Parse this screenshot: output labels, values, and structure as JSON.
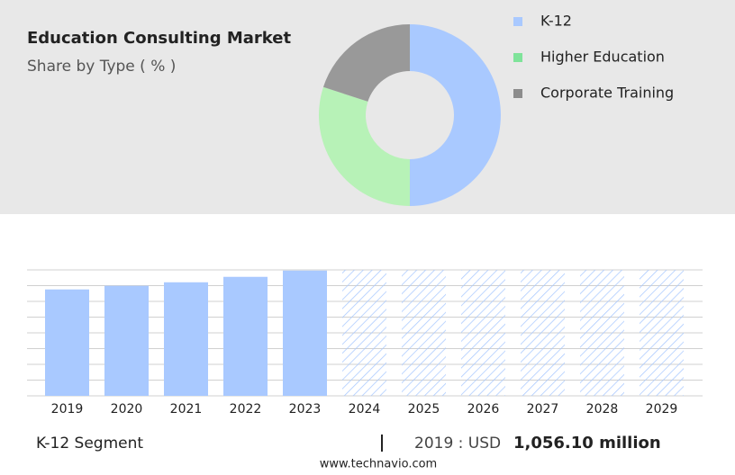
{
  "chart_data": [
    {
      "type": "pie",
      "title": "Education Consulting Market",
      "subtitle": "Share by Type ( % )",
      "categories": [
        "K-12",
        "Higher Education",
        "Corporate Training"
      ],
      "values": [
        50,
        30,
        20
      ],
      "colors": [
        "#a9c9ff",
        "#b7f2b7",
        "#999999"
      ],
      "legend_colors": [
        "#a9c9ff",
        "#7fe39a",
        "#8c8c8c"
      ]
    },
    {
      "type": "bar",
      "categories": [
        "2019",
        "2020",
        "2021",
        "2022",
        "2023",
        "2024",
        "2025",
        "2026",
        "2027",
        "2028",
        "2029"
      ],
      "values": [
        1056.1,
        1092,
        1127,
        1181,
        1243,
        null,
        null,
        null,
        null,
        null,
        null
      ],
      "color": "#a9c9ff",
      "ylim": [
        0,
        1250
      ],
      "grid": true,
      "footer": {
        "segment": "K-12 Segment",
        "year_label": "2019 : USD",
        "value": "1,056.10 million"
      },
      "source": "www.technavio.com"
    }
  ]
}
